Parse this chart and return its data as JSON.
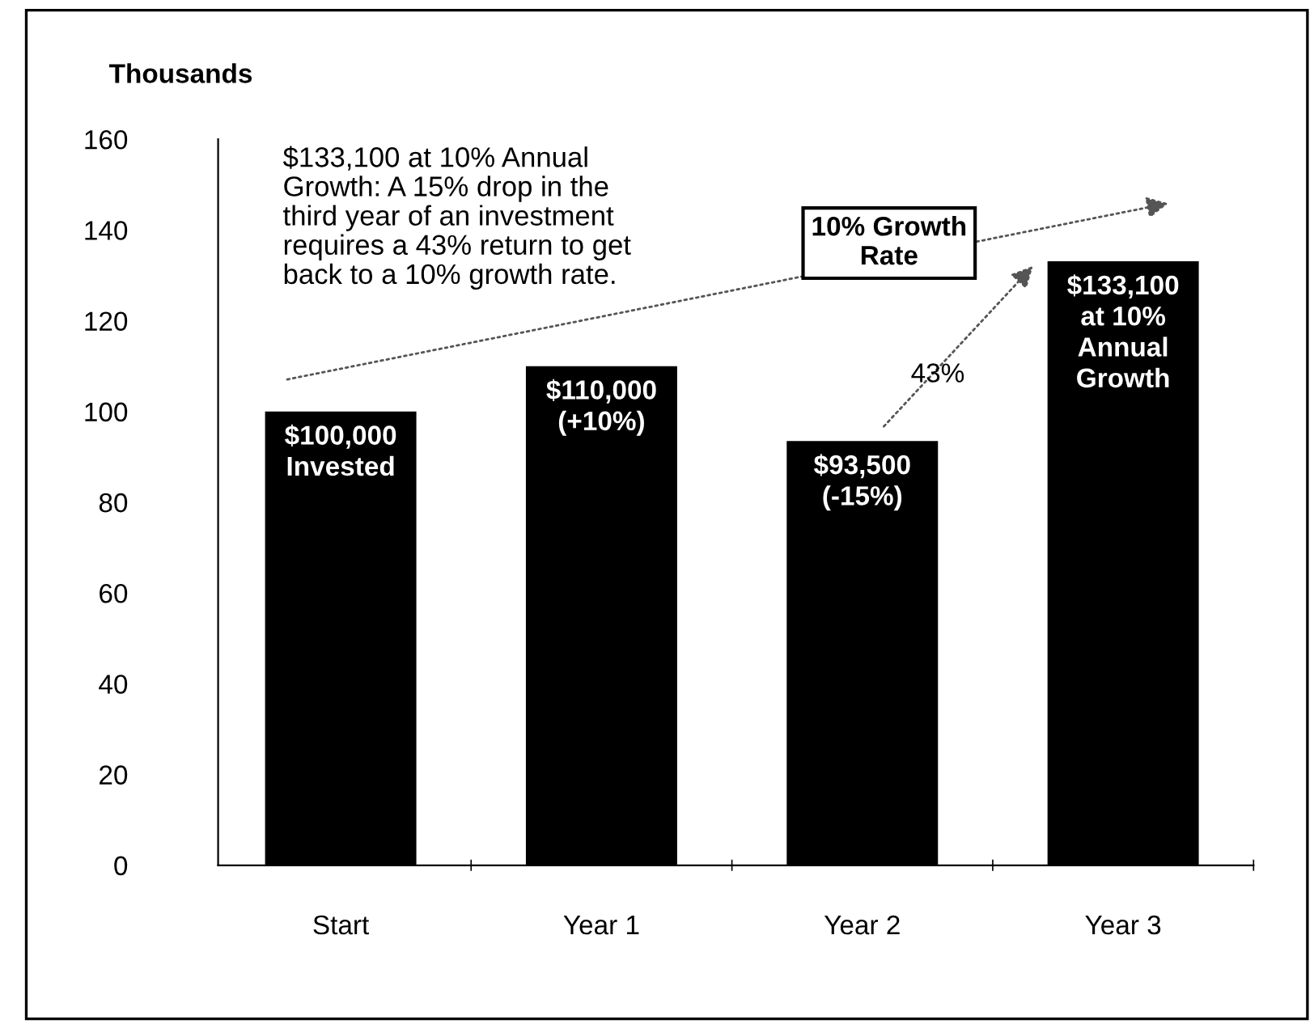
{
  "chart_data": {
    "type": "bar",
    "ylabel": "Thousands",
    "categories": [
      "Start",
      "Year 1",
      "Year 2",
      "Year 3"
    ],
    "values": [
      100,
      110,
      93.5,
      133.1
    ],
    "color": "#000000",
    "ylim": [
      0,
      160
    ],
    "yticks": [
      0,
      20,
      40,
      60,
      80,
      100,
      120,
      140,
      160
    ],
    "grid": false,
    "legend": false,
    "annotations": [
      "$133,100 at 10% Annual\nGrowth: A 15% drop in the\nthird year of an investment\nrequires a 43% return to get\nback to a 10% growth rate.",
      "10% Growth\nRate",
      "43%",
      {
        "text": "$100,000\nInvested",
        "x": "Start",
        "y": 100
      },
      {
        "text": "$110,000\n(+10%)",
        "x": "Year 1",
        "y": 110
      },
      {
        "text": "$93,500\n(-15%)",
        "x": "Year 2",
        "y": 93.5
      },
      {
        "text": "$133,100\nat 10%\nAnnual\nGrowth",
        "x": "Year 3",
        "y": 133.1
      }
    ]
  }
}
